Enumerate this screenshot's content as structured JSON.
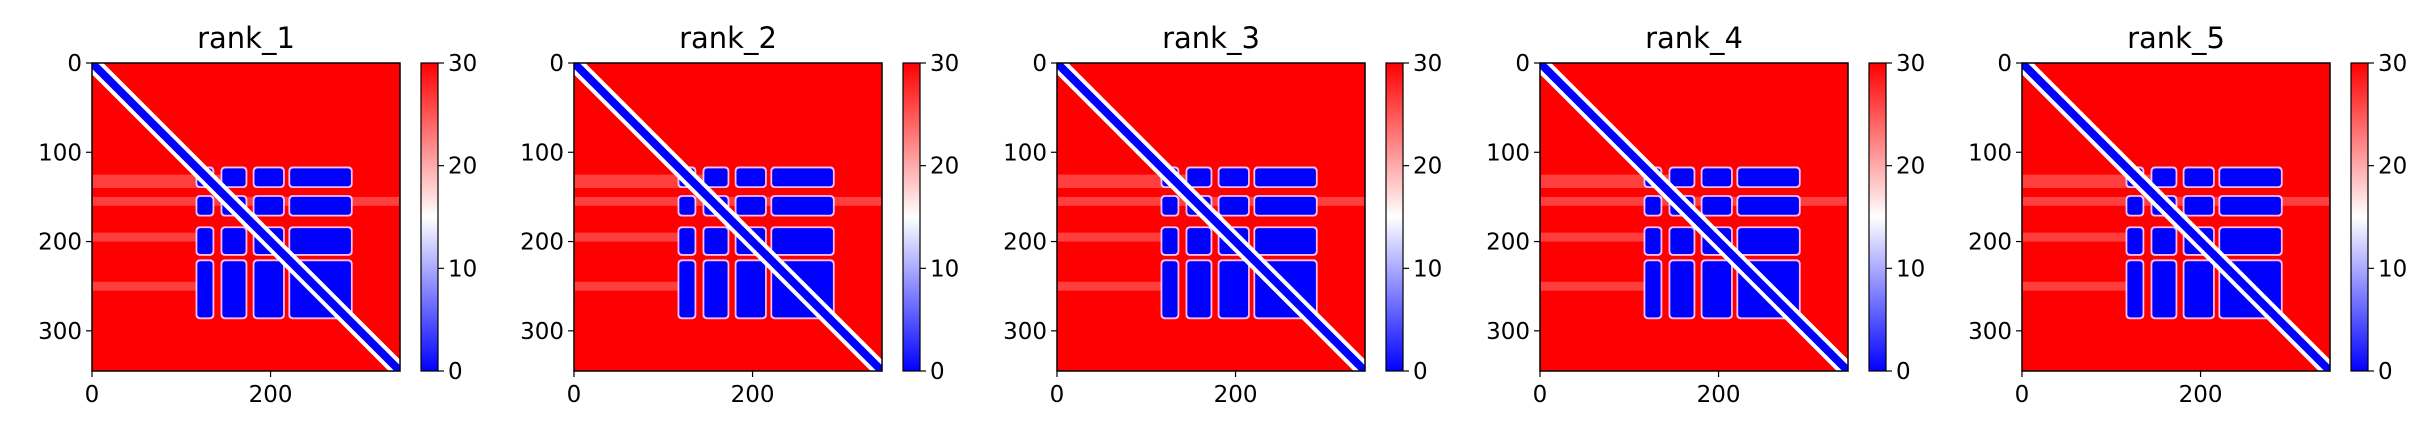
{
  "chart_data": [
    {
      "type": "heatmap",
      "title": "rank_1",
      "xticks": [
        "0",
        "200"
      ],
      "yticks": [
        "0",
        "100",
        "200",
        "300"
      ],
      "colorbar_ticks": [
        "0",
        "10",
        "20",
        "30"
      ],
      "xlim": [
        0,
        345
      ],
      "ylim": [
        345,
        0
      ],
      "clim": [
        0,
        30
      ],
      "colormap": [
        "#0000ff",
        "#ffffff",
        "#ff0000"
      ]
    },
    {
      "type": "heatmap",
      "title": "rank_2",
      "xticks": [
        "0",
        "200"
      ],
      "yticks": [
        "0",
        "100",
        "200",
        "300"
      ],
      "colorbar_ticks": [
        "0",
        "10",
        "20",
        "30"
      ],
      "xlim": [
        0,
        345
      ],
      "ylim": [
        345,
        0
      ],
      "clim": [
        0,
        30
      ],
      "colormap": [
        "#0000ff",
        "#ffffff",
        "#ff0000"
      ]
    },
    {
      "type": "heatmap",
      "title": "rank_3",
      "xticks": [
        "0",
        "200"
      ],
      "yticks": [
        "0",
        "100",
        "200",
        "300"
      ],
      "colorbar_ticks": [
        "0",
        "10",
        "20",
        "30"
      ],
      "xlim": [
        0,
        345
      ],
      "ylim": [
        345,
        0
      ],
      "clim": [
        0,
        30
      ],
      "colormap": [
        "#0000ff",
        "#ffffff",
        "#ff0000"
      ]
    },
    {
      "type": "heatmap",
      "title": "rank_4",
      "xticks": [
        "0",
        "200"
      ],
      "yticks": [
        "0",
        "100",
        "200",
        "300"
      ],
      "colorbar_ticks": [
        "0",
        "10",
        "20",
        "30"
      ],
      "xlim": [
        0,
        345
      ],
      "ylim": [
        345,
        0
      ],
      "clim": [
        0,
        30
      ],
      "colormap": [
        "#0000ff",
        "#ffffff",
        "#ff0000"
      ]
    },
    {
      "type": "heatmap",
      "title": "rank_5",
      "xticks": [
        "0",
        "200"
      ],
      "yticks": [
        "0",
        "100",
        "200",
        "300"
      ],
      "colorbar_ticks": [
        "0",
        "10",
        "20",
        "30"
      ],
      "xlim": [
        0,
        345
      ],
      "ylim": [
        345,
        0
      ],
      "clim": [
        0,
        30
      ],
      "colormap": [
        "#0000ff",
        "#ffffff",
        "#ff0000"
      ]
    }
  ]
}
